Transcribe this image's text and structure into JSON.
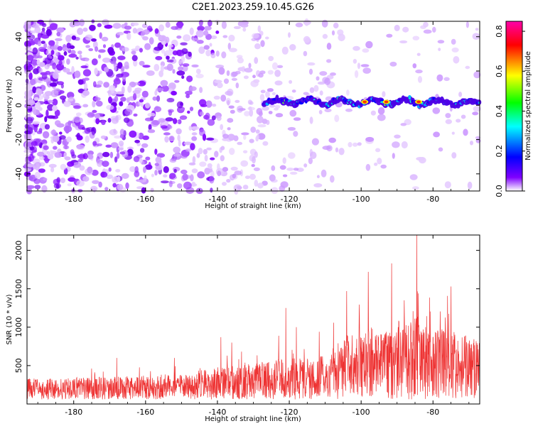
{
  "figure_title": "C2E1.2023.259.10.45.G26",
  "chart_data": [
    {
      "type": "heatmap",
      "xlabel": "Height of straight line (km)",
      "ylabel": "Frequency (Hz)",
      "xlim": [
        -193,
        -67
      ],
      "ylim": [
        -50,
        49
      ],
      "xticks": [
        -180,
        -160,
        -140,
        -120,
        -100,
        -80
      ],
      "yticks": [
        -40,
        -20,
        0,
        20,
        40
      ],
      "colorbar": {
        "label": "Normalized spectral amplitude",
        "range": [
          0.0,
          0.85
        ],
        "ticks": [
          "0.0",
          "0.2",
          "0.4",
          "0.6",
          "0.8"
        ],
        "tick_values": [
          0.0,
          0.2,
          0.4,
          0.6,
          0.8
        ],
        "colormap": [
          "#ffffff",
          "#7f00ff",
          "#0000ff",
          "#00ffff",
          "#00ff00",
          "#ffff00",
          "#ff0000",
          "#ff00aa"
        ]
      },
      "band": {
        "frequency": 2,
        "x_start": -127,
        "x_end": -67,
        "peak_x": [
          -99,
          -93,
          -84
        ],
        "peak_value": 0.8
      }
    },
    {
      "type": "line",
      "xlabel": "Height of straight line (km)",
      "ylabel": "SNR (10 * v/v)",
      "xlim": [
        -193,
        -67
      ],
      "ylim": [
        0,
        2200
      ],
      "xticks": [
        -180,
        -160,
        -140,
        -120,
        -100,
        -80
      ],
      "yticks": [
        500,
        1000,
        1500,
        2000
      ],
      "color": "#ee3333",
      "envelope": [
        [
          -193,
          260
        ],
        [
          -170,
          280
        ],
        [
          -150,
          320
        ],
        [
          -140,
          400
        ],
        [
          -125,
          480
        ],
        [
          -110,
          550
        ],
        [
          -105,
          800
        ],
        [
          -95,
          900
        ],
        [
          -85,
          1050
        ],
        [
          -80,
          900
        ],
        [
          -70,
          800
        ],
        [
          -67,
          700
        ]
      ],
      "peaks": [
        [
          -84.5,
          2200
        ],
        [
          -91.5,
          1830
        ],
        [
          -98,
          1720
        ],
        [
          -104,
          1470
        ],
        [
          -75,
          1530
        ],
        [
          -88,
          1350
        ],
        [
          -121,
          1250
        ],
        [
          -118,
          1000
        ],
        [
          -136,
          800
        ],
        [
          -139,
          870
        ],
        [
          -152,
          600
        ],
        [
          -168,
          600
        ]
      ]
    }
  ]
}
